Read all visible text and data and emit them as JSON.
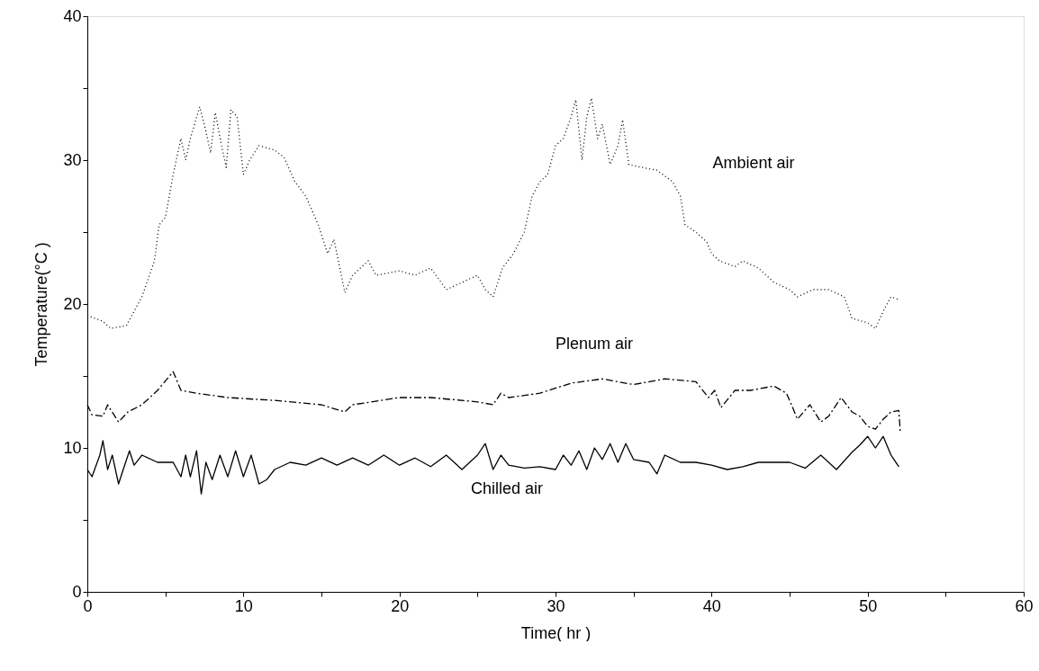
{
  "chart_data": {
    "type": "line",
    "xlabel": "Time( hr )",
    "ylabel": "Temperature(°C )",
    "xlim": [
      0,
      60
    ],
    "ylim": [
      0,
      40
    ],
    "xticks": [
      0,
      {
        "value": 5,
        "label": null
      },
      10,
      {
        "value": 15,
        "label": null
      },
      20,
      {
        "value": 25,
        "label": null
      },
      30,
      {
        "value": 35,
        "label": null
      },
      40,
      {
        "value": 45,
        "label": null
      },
      50,
      {
        "value": 55,
        "label": null
      },
      60
    ],
    "yticks": [
      0,
      {
        "value": 5,
        "label": null
      },
      10,
      {
        "value": 15,
        "label": null
      },
      20,
      {
        "value": 25,
        "label": null
      },
      30,
      {
        "value": 35,
        "label": null
      },
      40
    ],
    "grid": false,
    "legend": false,
    "marker": "none",
    "series": [
      {
        "name": "Ambient air",
        "color": "#000000",
        "line_style": "dotted",
        "x": [
          0,
          1,
          1.5,
          2.5,
          3.5,
          4.3,
          4.6,
          5,
          5.5,
          6,
          6.3,
          6.6,
          7.2,
          7.6,
          7.9,
          8.2,
          8.6,
          8.9,
          9.2,
          9.6,
          10,
          10.4,
          11,
          12,
          12.6,
          13.3,
          14,
          14.8,
          15.4,
          15.8,
          16.5,
          17,
          18,
          18.5,
          20,
          21,
          22,
          23,
          24,
          25,
          25.5,
          26,
          26.6,
          27.3,
          28,
          28.5,
          29,
          29.5,
          30,
          30.5,
          31,
          31.3,
          31.7,
          32,
          32.3,
          32.7,
          33,
          33.5,
          34,
          34.3,
          34.7,
          35.5,
          36.5,
          37.5,
          38,
          38.3,
          39,
          39.7,
          40,
          40.5,
          41.5,
          42,
          43,
          44,
          45,
          45.5,
          46.5,
          47.5,
          48.5,
          49,
          50,
          50.5,
          51,
          51.5,
          52
        ],
        "values": [
          19.2,
          18.8,
          18.3,
          18.5,
          20.5,
          23,
          25.5,
          26,
          29,
          31.5,
          30,
          31.5,
          33.7,
          32,
          30.5,
          33.3,
          31,
          29.5,
          33.5,
          33,
          29,
          30,
          31,
          30.7,
          30.2,
          28.5,
          27.5,
          25.5,
          23.5,
          24.5,
          20.8,
          22,
          23,
          22,
          22.3,
          22,
          22.5,
          21,
          21.5,
          22,
          21,
          20.5,
          22.5,
          23.5,
          25,
          27.5,
          28.5,
          29,
          31,
          31.5,
          33,
          34.2,
          30,
          33,
          34.3,
          31.5,
          32.5,
          29.7,
          31,
          32.8,
          29.7,
          29.5,
          29.3,
          28.5,
          27.5,
          25.5,
          25,
          24.3,
          23.5,
          23,
          22.6,
          23,
          22.5,
          21.5,
          21,
          20.5,
          21,
          21,
          20.5,
          19,
          18.7,
          18.3,
          19.5,
          20.5,
          20.3
        ]
      },
      {
        "name": "Plenum air",
        "color": "#000000",
        "line_style": "dashed",
        "x": [
          0,
          0.3,
          1,
          1.3,
          2,
          2.6,
          3.5,
          4.5,
          5.5,
          6,
          7,
          9,
          12,
          15,
          16.5,
          17,
          20,
          22,
          25,
          26,
          26.5,
          27,
          29,
          31,
          33,
          35,
          37,
          39,
          39.8,
          40.2,
          40.6,
          41.5,
          42.5,
          44,
          44.8,
          45.2,
          45.5,
          46.3,
          47,
          47.5,
          48.3,
          49,
          49.5,
          50,
          50.5,
          51,
          51.5,
          52,
          52.1
        ],
        "values": [
          13,
          12.3,
          12.2,
          13,
          11.8,
          12.5,
          13,
          14,
          15.3,
          14,
          13.8,
          13.5,
          13.3,
          13,
          12.5,
          13,
          13.5,
          13.5,
          13.2,
          13,
          13.8,
          13.5,
          13.8,
          14.5,
          14.8,
          14.4,
          14.8,
          14.6,
          13.5,
          14,
          12.8,
          14,
          14,
          14.3,
          13.8,
          12.8,
          12,
          13,
          11.8,
          12.2,
          13.5,
          12.5,
          12.2,
          11.5,
          11.3,
          12,
          12.5,
          12.6,
          11
        ]
      },
      {
        "name": "Chilled air",
        "color": "#000000",
        "line_style": "solid",
        "x": [
          0,
          0.3,
          0.8,
          1,
          1.3,
          1.6,
          2,
          2.3,
          2.7,
          3,
          3.5,
          4.5,
          5.5,
          6,
          6.3,
          6.6,
          7,
          7.3,
          7.6,
          8,
          8.5,
          9,
          9.5,
          10,
          10.5,
          11,
          11.5,
          12,
          13,
          14,
          15,
          16,
          17,
          18,
          19,
          20,
          21,
          22,
          23,
          24,
          25,
          25.5,
          26,
          26.5,
          27,
          28,
          29,
          30,
          30.5,
          31,
          31.5,
          32,
          32.5,
          33,
          33.5,
          34,
          34.5,
          35,
          36,
          36.5,
          37,
          38,
          39,
          40,
          41,
          42,
          43,
          44,
          45,
          46,
          47,
          48,
          49,
          49.5,
          50,
          50.5,
          51,
          51.5,
          52
        ],
        "values": [
          8.5,
          8,
          9.5,
          10.5,
          8.5,
          9.5,
          7.5,
          8.5,
          9.8,
          8.8,
          9.5,
          9,
          9,
          8,
          9.5,
          8,
          9.8,
          6.8,
          9,
          7.8,
          9.5,
          8,
          9.8,
          8,
          9.5,
          7.5,
          7.8,
          8.5,
          9,
          8.8,
          9.3,
          8.8,
          9.3,
          8.8,
          9.5,
          8.8,
          9.3,
          8.7,
          9.5,
          8.5,
          9.5,
          10.3,
          8.5,
          9.5,
          8.8,
          8.6,
          8.7,
          8.5,
          9.5,
          8.8,
          9.8,
          8.5,
          10,
          9.2,
          10.3,
          9,
          10.3,
          9.2,
          9,
          8.2,
          9.5,
          9,
          9,
          8.8,
          8.5,
          8.7,
          9,
          9,
          9,
          8.6,
          9.5,
          8.5,
          9.7,
          10.2,
          10.8,
          10,
          10.8,
          9.5,
          8.7
        ]
      }
    ]
  }
}
